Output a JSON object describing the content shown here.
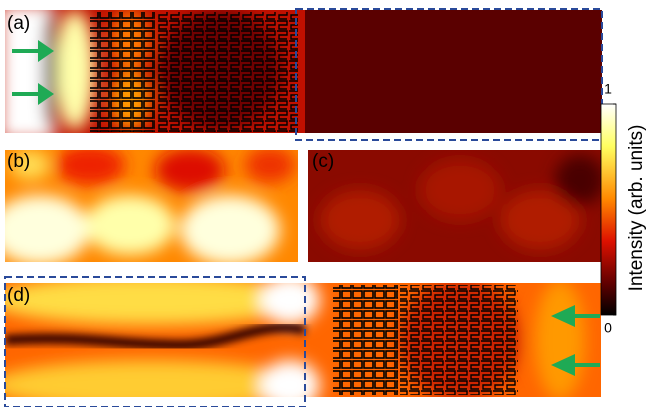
{
  "panels": [
    {
      "label": "(a)"
    },
    {
      "label": "(b)"
    },
    {
      "label": "(c)"
    },
    {
      "label": "(d)"
    }
  ],
  "colorbar": {
    "title": "Intensity (arb. units)",
    "range": [
      0,
      1
    ],
    "ticks": [
      1,
      0
    ]
  }
}
